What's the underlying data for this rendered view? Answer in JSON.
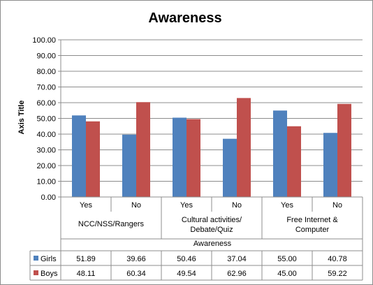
{
  "chart_data": {
    "type": "bar",
    "title": "Awareness",
    "ylabel": "Axis Title",
    "xlabel": "Awareness",
    "ylim": [
      0,
      100
    ],
    "ytick_step": 10,
    "ytick_labels": [
      "0.00",
      "10.00",
      "20.00",
      "30.00",
      "40.00",
      "50.00",
      "60.00",
      "70.00",
      "80.00",
      "90.00",
      "100.00"
    ],
    "categories": [
      "Yes",
      "No",
      "Yes",
      "No",
      "Yes",
      "No"
    ],
    "groups": [
      {
        "label_lines": [
          "NCC/NSS/Rangers"
        ]
      },
      {
        "label_lines": [
          "Cultural activities/",
          "Debate/Quiz"
        ]
      },
      {
        "label_lines": [
          "Free Internet &",
          "Computer"
        ]
      }
    ],
    "series": [
      {
        "name": "Girls",
        "color": "#4F81BD",
        "values": [
          51.89,
          39.66,
          50.46,
          37.04,
          55.0,
          40.78
        ],
        "value_labels": [
          "51.89",
          "39.66",
          "50.46",
          "37.04",
          "55.00",
          "40.78"
        ]
      },
      {
        "name": "Boys",
        "color": "#C0504D",
        "values": [
          48.11,
          60.34,
          49.54,
          62.96,
          45.0,
          59.22
        ],
        "value_labels": [
          "48.11",
          "60.34",
          "49.54",
          "62.96",
          "45.00",
          "59.22"
        ]
      }
    ],
    "grid": true,
    "legend": "data-table"
  }
}
